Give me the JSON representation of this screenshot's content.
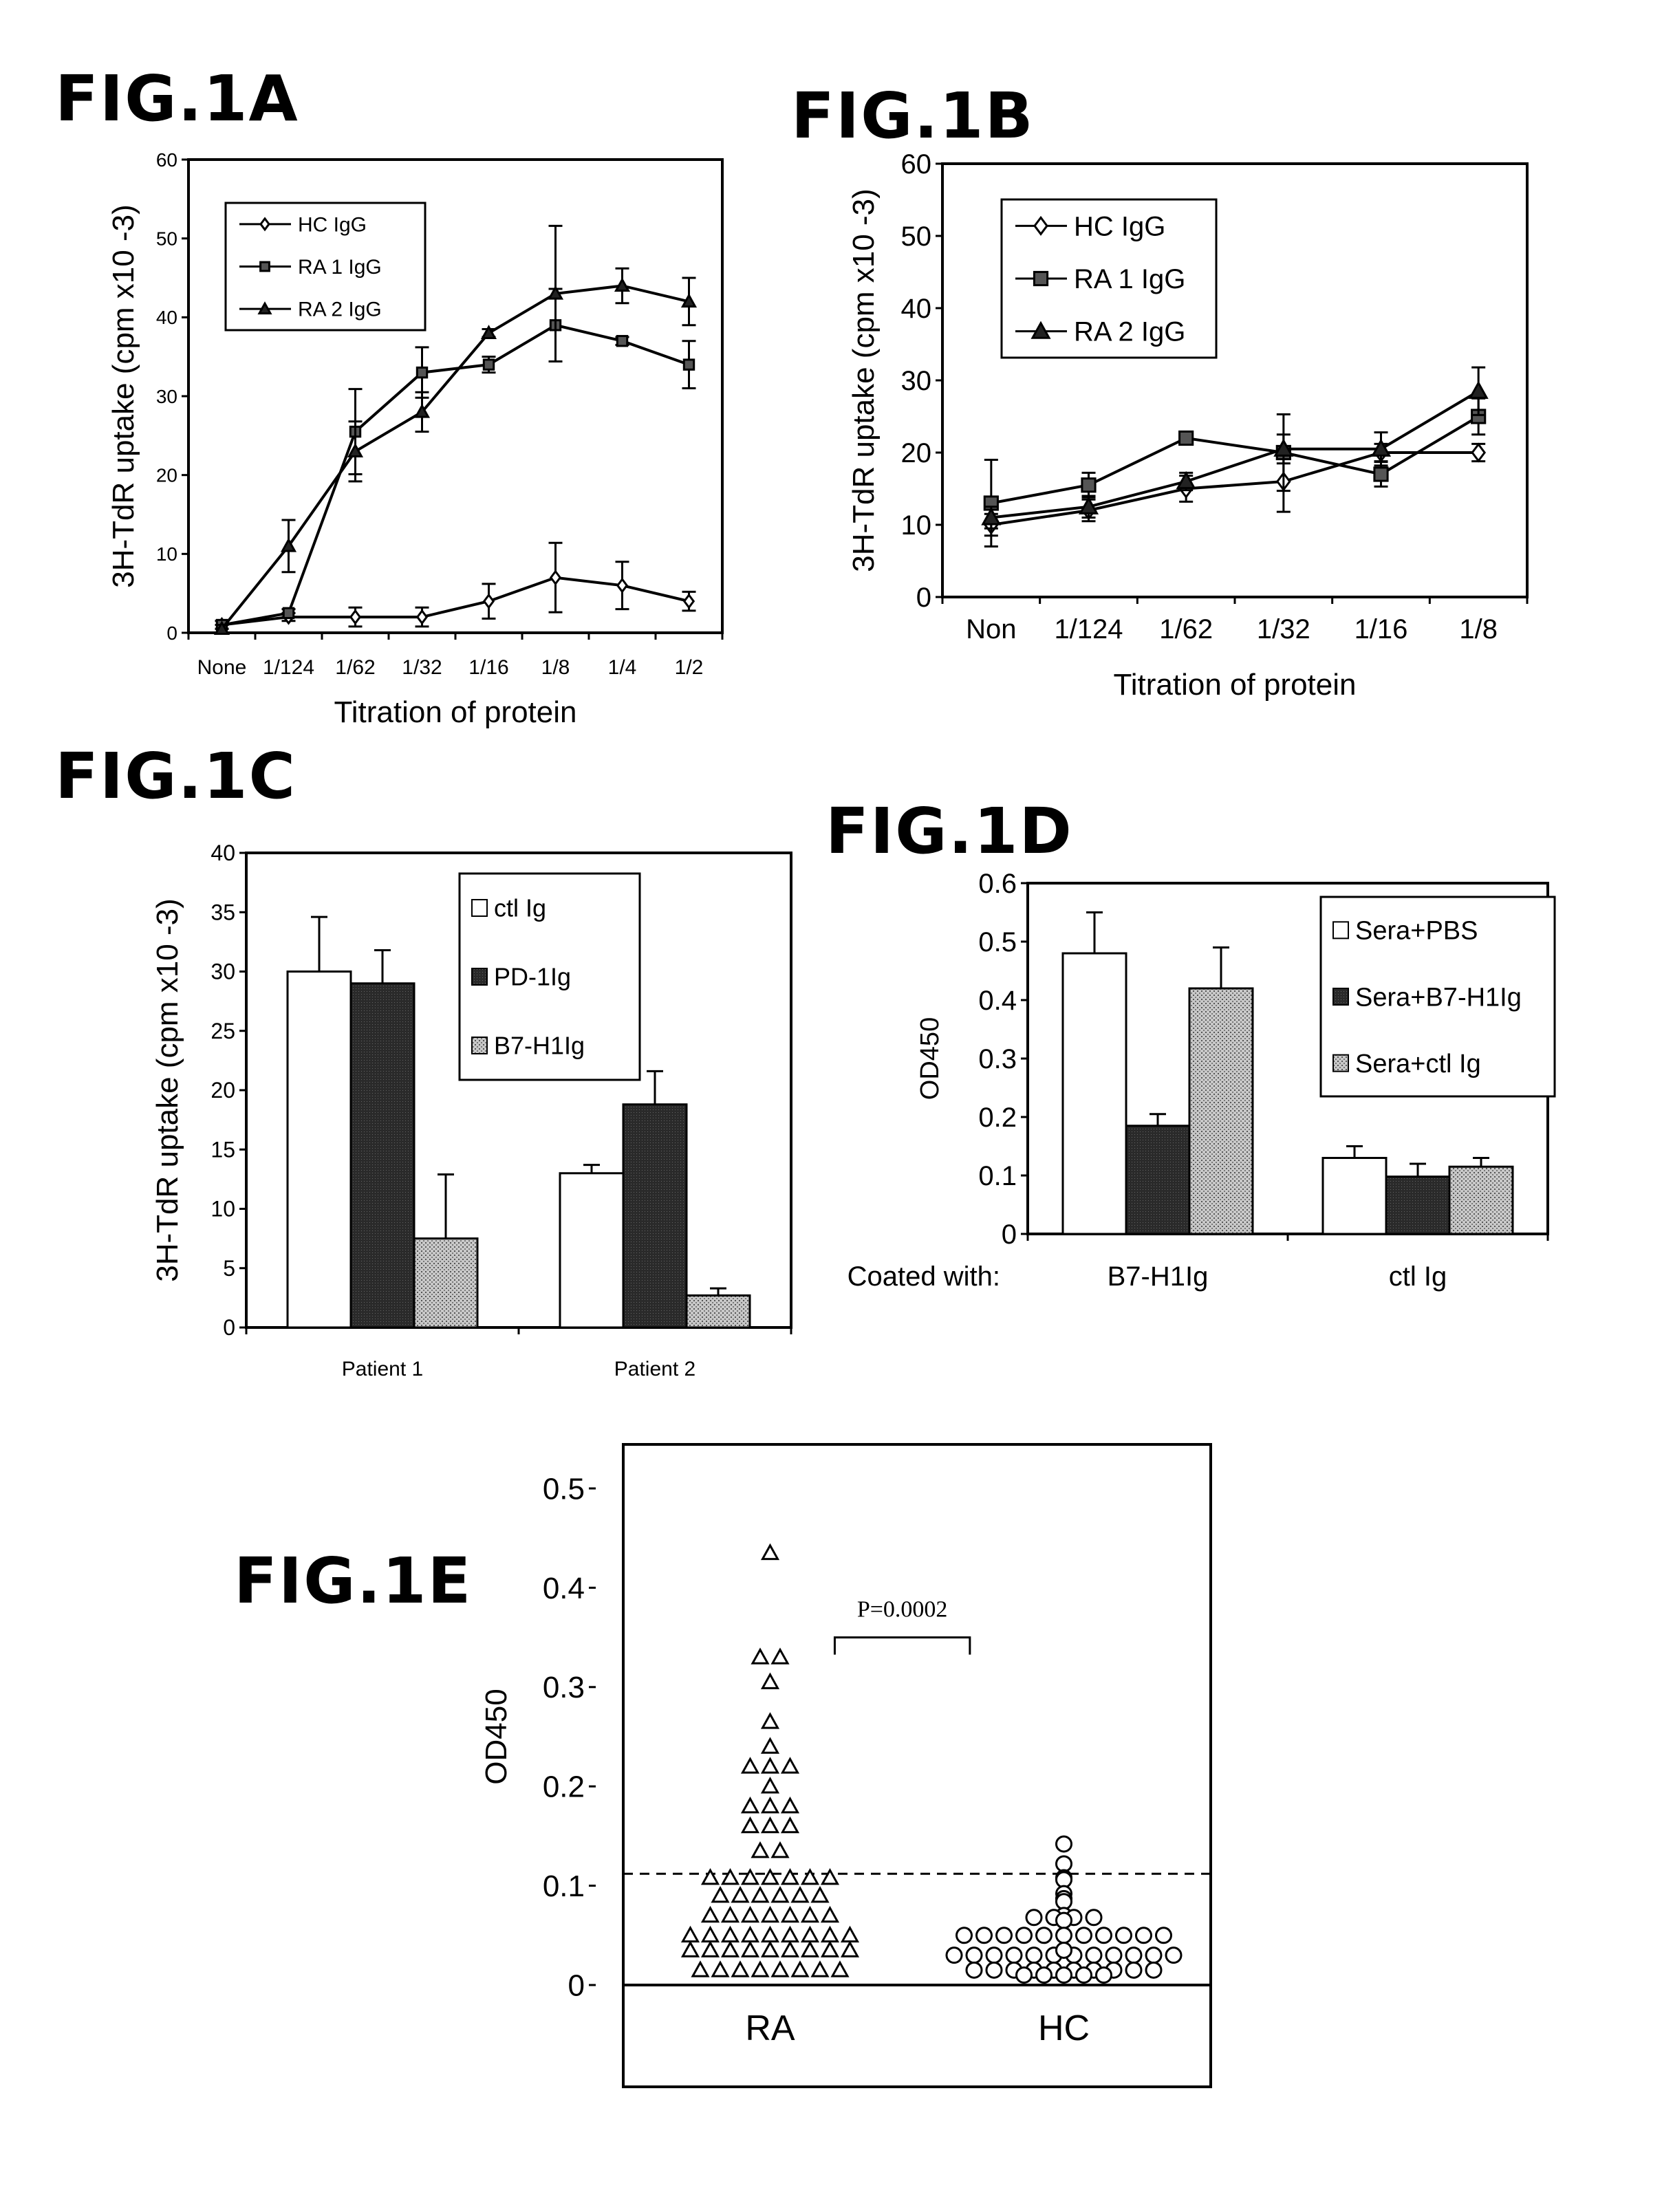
{
  "chart_data": [
    {
      "id": "1A",
      "type": "line",
      "figure_label": "FIG.1A",
      "xlabel": "Titration of protein",
      "ylabel": "3H-TdR uptake (cpm x10 -3)",
      "ylim": [
        0,
        60
      ],
      "yticks": [
        0,
        10,
        20,
        30,
        40,
        50,
        60
      ],
      "categories": [
        "None",
        "1/124",
        "1/62",
        "1/32",
        "1/16",
        "1/8",
        "1/4",
        "1/2"
      ],
      "legend_position": "top-left",
      "series": [
        {
          "name": "HC IgG",
          "marker": "diamond-open",
          "values": [
            1,
            2,
            2,
            2,
            4,
            7,
            6,
            4
          ],
          "errors": [
            0.5,
            0.5,
            1.2,
            1.2,
            2.2,
            4.4,
            3,
            1.2
          ]
        },
        {
          "name": "RA 1 IgG",
          "marker": "square",
          "values": [
            1,
            2.5,
            25.5,
            33,
            34,
            39,
            37,
            34
          ],
          "errors": [
            0.5,
            0.5,
            5.4,
            3.2,
            1,
            4.6,
            0.5,
            3
          ]
        },
        {
          "name": "RA 2 IgG",
          "marker": "triangle",
          "values": [
            0.5,
            11,
            23,
            28,
            38,
            43,
            44,
            42
          ],
          "errors": [
            0.5,
            3.3,
            3.8,
            2.5,
            0.5,
            8.6,
            2.2,
            3
          ]
        }
      ]
    },
    {
      "id": "1B",
      "type": "line",
      "figure_label": "FIG.1B",
      "xlabel": "Titration of protein",
      "ylabel": "3H-TdR uptake (cpm x10 -3)",
      "ylim": [
        0,
        60
      ],
      "yticks": [
        0,
        10,
        20,
        30,
        40,
        50,
        60
      ],
      "categories": [
        "Non",
        "1/124",
        "1/62",
        "1/32",
        "1/16",
        "1/8"
      ],
      "legend_position": "top-left",
      "series": [
        {
          "name": "HC IgG",
          "marker": "diamond-open",
          "values": [
            10,
            12,
            15,
            16,
            20,
            20
          ],
          "errors": [
            1.5,
            1.5,
            1.8,
            4.2,
            1.2,
            1.2
          ]
        },
        {
          "name": "RA 1 IgG",
          "marker": "square",
          "values": [
            13,
            15.5,
            22,
            20,
            17,
            25
          ],
          "errors": [
            6,
            1.7,
            0.8,
            5.3,
            1.7,
            2.5
          ]
        },
        {
          "name": "RA 2 IgG",
          "marker": "triangle",
          "values": [
            11,
            12.5,
            16,
            20.5,
            20.5,
            28.5
          ],
          "errors": [
            1.5,
            1.5,
            1.2,
            2,
            2.3,
            3.3
          ]
        }
      ]
    },
    {
      "id": "1C",
      "type": "bar",
      "figure_label": "FIG.1C",
      "xlabel": "",
      "ylabel": "3H-TdR uptake (cpm x10 -3)",
      "ylim": [
        0,
        40
      ],
      "yticks": [
        0,
        5,
        10,
        15,
        20,
        25,
        30,
        35,
        40
      ],
      "categories": [
        "Patient 1",
        "Patient 2"
      ],
      "legend_position": "top-right",
      "series": [
        {
          "name": "ctl Ig",
          "fill": "white",
          "values": [
            30,
            13
          ],
          "errors": [
            4.6,
            0.7
          ]
        },
        {
          "name": "PD-1Ig",
          "fill": "dark",
          "values": [
            29,
            18.8
          ],
          "errors": [
            2.8,
            2.8
          ]
        },
        {
          "name": "B7-H1Ig",
          "fill": "light-stipple",
          "values": [
            7.5,
            2.7
          ],
          "errors": [
            5.4,
            0.6
          ]
        }
      ]
    },
    {
      "id": "1D",
      "type": "bar",
      "figure_label": "FIG.1D",
      "xlabel": "Coated with:",
      "ylabel": "OD450",
      "ylim": [
        0,
        0.6
      ],
      "yticks": [
        0,
        0.1,
        0.2,
        0.3,
        0.4,
        0.5,
        0.6
      ],
      "categories": [
        "B7-H1Ig",
        "ctl Ig"
      ],
      "legend_position": "top-right",
      "series": [
        {
          "name": "Sera+PBS",
          "fill": "white",
          "values": [
            0.48,
            0.13
          ],
          "errors": [
            0.07,
            0.02
          ]
        },
        {
          "name": "Sera+B7-H1Ig",
          "fill": "dark",
          "values": [
            0.185,
            0.098
          ],
          "errors": [
            0.02,
            0.022
          ]
        },
        {
          "name": "Sera+ctl Ig",
          "fill": "light-stipple",
          "values": [
            0.42,
            0.115
          ],
          "errors": [
            0.07,
            0.015
          ]
        }
      ]
    },
    {
      "id": "1E",
      "type": "scatter",
      "figure_label": "FIG.1E",
      "xlabel": "",
      "ylabel": "OD450",
      "ylim": [
        0,
        0.5
      ],
      "yticks": [
        0,
        0.1,
        0.2,
        0.3,
        0.4,
        0.5
      ],
      "categories": [
        "RA",
        "HC"
      ],
      "threshold": 0.112,
      "annotation": "P=0.0002",
      "groups": [
        {
          "name": "RA",
          "marker": "triangle-open",
          "values": [
            0.435,
            0.33,
            0.33,
            0.305,
            0.265,
            0.24,
            0.22,
            0.22,
            0.22,
            0.2,
            0.18,
            0.18,
            0.18,
            0.16,
            0.16,
            0.16,
            0.135,
            0.135,
            0.108,
            0.108,
            0.108,
            0.108,
            0.108,
            0.108,
            0.108,
            0.09,
            0.09,
            0.09,
            0.09,
            0.09,
            0.09,
            0.07,
            0.07,
            0.07,
            0.07,
            0.07,
            0.07,
            0.07,
            0.05,
            0.05,
            0.05,
            0.05,
            0.05,
            0.05,
            0.05,
            0.05,
            0.05,
            0.035,
            0.035,
            0.035,
            0.035,
            0.035,
            0.035,
            0.035,
            0.035,
            0.035,
            0.015,
            0.015,
            0.015,
            0.015,
            0.015,
            0.015,
            0.015,
            0.015
          ]
        },
        {
          "name": "HC",
          "marker": "circle-open",
          "values": [
            0.142,
            0.122,
            0.108,
            0.106,
            0.092,
            0.087,
            0.084,
            0.07,
            0.068,
            0.068,
            0.068,
            0.068,
            0.065,
            0.05,
            0.05,
            0.05,
            0.05,
            0.05,
            0.05,
            0.05,
            0.05,
            0.05,
            0.05,
            0.05,
            0.03,
            0.03,
            0.03,
            0.03,
            0.03,
            0.03,
            0.035,
            0.03,
            0.03,
            0.03,
            0.03,
            0.03,
            0.03,
            0.015,
            0.015,
            0.01,
            0.01,
            0.015,
            0.015,
            0.015,
            0.015,
            0.01,
            0.015,
            0.015,
            0.01,
            0.01,
            0.015,
            0.015
          ]
        }
      ]
    }
  ]
}
